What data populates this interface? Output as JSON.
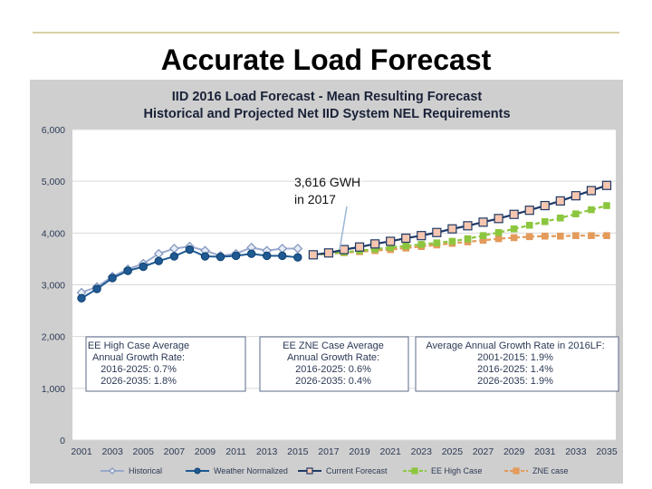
{
  "slide": {
    "title": "Accurate Load Forecast"
  },
  "chart_data": {
    "type": "line",
    "title": "IID 2016 Load Forecast - Mean Resulting Forecast",
    "subtitle": "Historical and Projected Net IID System NEL Requirements",
    "ylim": [
      0,
      6000
    ],
    "xlim": [
      2001,
      2035
    ],
    "y_ticks": [
      "6,000",
      "5,000",
      "4,000",
      "3,000",
      "2,000",
      "1,000",
      "0"
    ],
    "x_ticks": [
      "2001",
      "2003",
      "2005",
      "2007",
      "2009",
      "2011",
      "2013",
      "2015",
      "2017",
      "2019",
      "2021",
      "2023",
      "2025",
      "2027",
      "2029",
      "2031",
      "2033",
      "2035"
    ],
    "grid": true,
    "legend_position": "bottom",
    "series": [
      {
        "name": "Historical",
        "color": "#9aa9cc",
        "x": [
          2001,
          2002,
          2003,
          2004,
          2005,
          2006,
          2007,
          2008,
          2009,
          2010,
          2011,
          2012,
          2013,
          2014,
          2015
        ],
        "values": [
          2850,
          2960,
          3160,
          3300,
          3410,
          3600,
          3700,
          3740,
          3660,
          3560,
          3600,
          3720,
          3660,
          3700,
          3700
        ]
      },
      {
        "name": "Weather Normalized",
        "color": "#1f5a93",
        "x": [
          2001,
          2002,
          2003,
          2004,
          2005,
          2006,
          2007,
          2008,
          2009,
          2010,
          2011,
          2012,
          2013,
          2014,
          2015
        ],
        "values": [
          2740,
          2920,
          3130,
          3270,
          3350,
          3460,
          3550,
          3680,
          3550,
          3540,
          3560,
          3600,
          3560,
          3560,
          3530
        ]
      },
      {
        "name": "Current Forecast",
        "color": "#1f3a66",
        "x": [
          2016,
          2017,
          2018,
          2019,
          2020,
          2021,
          2022,
          2023,
          2024,
          2025,
          2026,
          2027,
          2028,
          2029,
          2030,
          2031,
          2032,
          2033,
          2034,
          2035
        ],
        "values": [
          3580,
          3616,
          3680,
          3730,
          3790,
          3840,
          3900,
          3950,
          4010,
          4080,
          4140,
          4210,
          4280,
          4360,
          4440,
          4530,
          4620,
          4720,
          4820,
          4920
        ]
      },
      {
        "name": "EE High Case",
        "color": "#8cc63f",
        "x": [
          2016,
          2017,
          2018,
          2019,
          2020,
          2021,
          2022,
          2023,
          2024,
          2025,
          2026,
          2027,
          2028,
          2029,
          2030,
          2031,
          2032,
          2033,
          2034,
          2035
        ],
        "values": [
          3580,
          3600,
          3630,
          3660,
          3690,
          3720,
          3750,
          3780,
          3810,
          3840,
          3890,
          3950,
          4010,
          4080,
          4150,
          4220,
          4290,
          4370,
          4450,
          4530
        ]
      },
      {
        "name": "ZNE case",
        "color": "#e39a5b",
        "x": [
          2016,
          2017,
          2018,
          2019,
          2020,
          2021,
          2022,
          2023,
          2024,
          2025,
          2026,
          2027,
          2028,
          2029,
          2030,
          2031,
          2032,
          2033,
          2034,
          2035
        ],
        "values": [
          3580,
          3600,
          3620,
          3640,
          3660,
          3680,
          3710,
          3740,
          3770,
          3800,
          3830,
          3860,
          3890,
          3910,
          3930,
          3940,
          3940,
          3950,
          3950,
          3950
        ]
      }
    ],
    "annotation": {
      "line1": "3,616 GWH",
      "line2": "in 2017"
    },
    "info_boxes": [
      {
        "lines": [
          "EE High Case Average",
          "Annual Growth Rate:",
          "2016-2025:   0.7%",
          "2026-2035:   1.8%"
        ]
      },
      {
        "lines": [
          "EE ZNE Case Average",
          "Annual Growth Rate:",
          "2016-2025:   0.6%",
          "2026-2035:   0.4%"
        ]
      },
      {
        "lines": [
          "Average Annual Growth Rate in 2016LF:",
          "2001-2015:    1.9%",
          "2016-2025:    1.4%",
          "2026-2035:    1.9%"
        ]
      }
    ]
  }
}
